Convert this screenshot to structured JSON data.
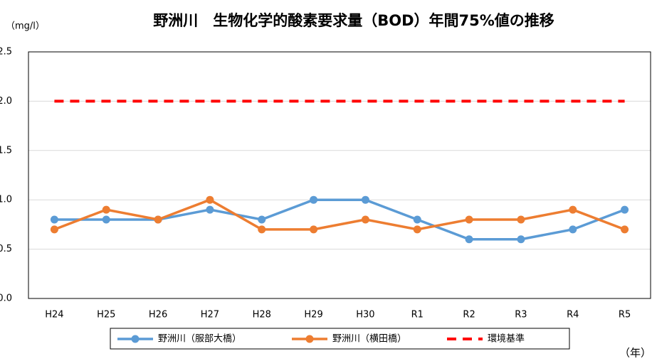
{
  "chart_data": {
    "type": "line",
    "title": "野洲川　生物化学的酸素要求量（BOD）年間75%値の推移",
    "y_label": "（mg/l）",
    "x_label": "（年）",
    "categories": [
      "H24",
      "H25",
      "H26",
      "H27",
      "H28",
      "H29",
      "H30",
      "R1",
      "R2",
      "R3",
      "R4",
      "R5"
    ],
    "series": [
      {
        "name": "野洲川（服部大橋）",
        "color": "#5b9bd5",
        "style": "solid-marker",
        "values": [
          0.8,
          0.8,
          0.8,
          0.9,
          0.8,
          1.0,
          1.0,
          0.8,
          0.6,
          0.6,
          0.7,
          0.9
        ]
      },
      {
        "name": "野洲川（横田橋）",
        "color": "#ed7d31",
        "style": "solid-marker",
        "values": [
          0.7,
          0.9,
          0.8,
          1.0,
          0.7,
          0.7,
          0.8,
          0.7,
          0.8,
          0.8,
          0.9,
          0.7
        ]
      },
      {
        "name": "環境基準",
        "color": "#ff0000",
        "style": "dashed",
        "values": [
          2,
          2,
          2,
          2,
          2,
          2,
          2,
          2,
          2,
          2,
          2,
          2
        ]
      }
    ],
    "ylim": [
      0,
      2.5
    ],
    "yticks": [
      {
        "value": 0,
        "label": "0.0"
      },
      0.5,
      {
        "value": 1,
        "label": "1.0"
      },
      1.5,
      {
        "value": 2,
        "label": "2.0"
      },
      2.5
    ],
    "grid": true,
    "legend": "bottom"
  }
}
